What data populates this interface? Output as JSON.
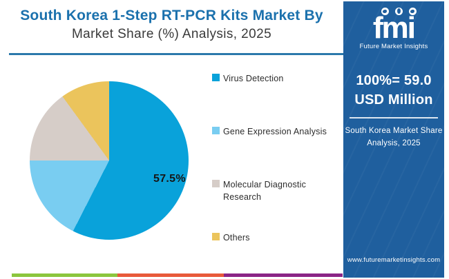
{
  "header": {
    "title_line1": "South Korea 1-Step RT-PCR Kits Market By",
    "title_line2": "Market Share (%) Analysis, 2025",
    "title_color": "#1b71ad",
    "underline_color": "#2b78ab"
  },
  "chart_data": {
    "type": "pie",
    "title": "South Korea 1-Step RT-PCR Kits Market By Market Share (%) Analysis, 2025",
    "categories": [
      "Virus Detection",
      "Gene Expression Analysis",
      "Molecular Diagnostic Research",
      "Others"
    ],
    "values": [
      57.5,
      17.5,
      15,
      10
    ],
    "colors": [
      "#09a2da",
      "#79cdf1",
      "#d6cdc8",
      "#ebc45c"
    ],
    "start_angle_deg": 0,
    "direction": "clockwise",
    "labeled_slice": {
      "category": "Virus Detection",
      "label": "57.5%"
    },
    "legend_position": "right",
    "total_annotation": "100%= 59.0 USD Million"
  },
  "legend": {
    "items": [
      {
        "label": "Virus Detection"
      },
      {
        "label": "Gene Expression Analysis"
      },
      {
        "label": "Molecular Diagnostic Research"
      },
      {
        "label": "Others"
      }
    ]
  },
  "side_panel": {
    "background_color": "#1f5f9e",
    "logo": {
      "text": "fmi",
      "caption": "Future Market Insights"
    },
    "headline_line1": "100%= 59.0",
    "headline_line2": "USD Million",
    "subtitle_line1": "South Korea Market Share",
    "subtitle_line2": "Analysis, 2025",
    "website": "www.futuremarketinsights.com"
  },
  "footer_bar": {
    "segments": [
      {
        "name": "green",
        "color": "#8cc63e"
      },
      {
        "name": "orange",
        "color": "#e8593a"
      },
      {
        "name": "purple",
        "color": "#8b2486"
      }
    ]
  }
}
